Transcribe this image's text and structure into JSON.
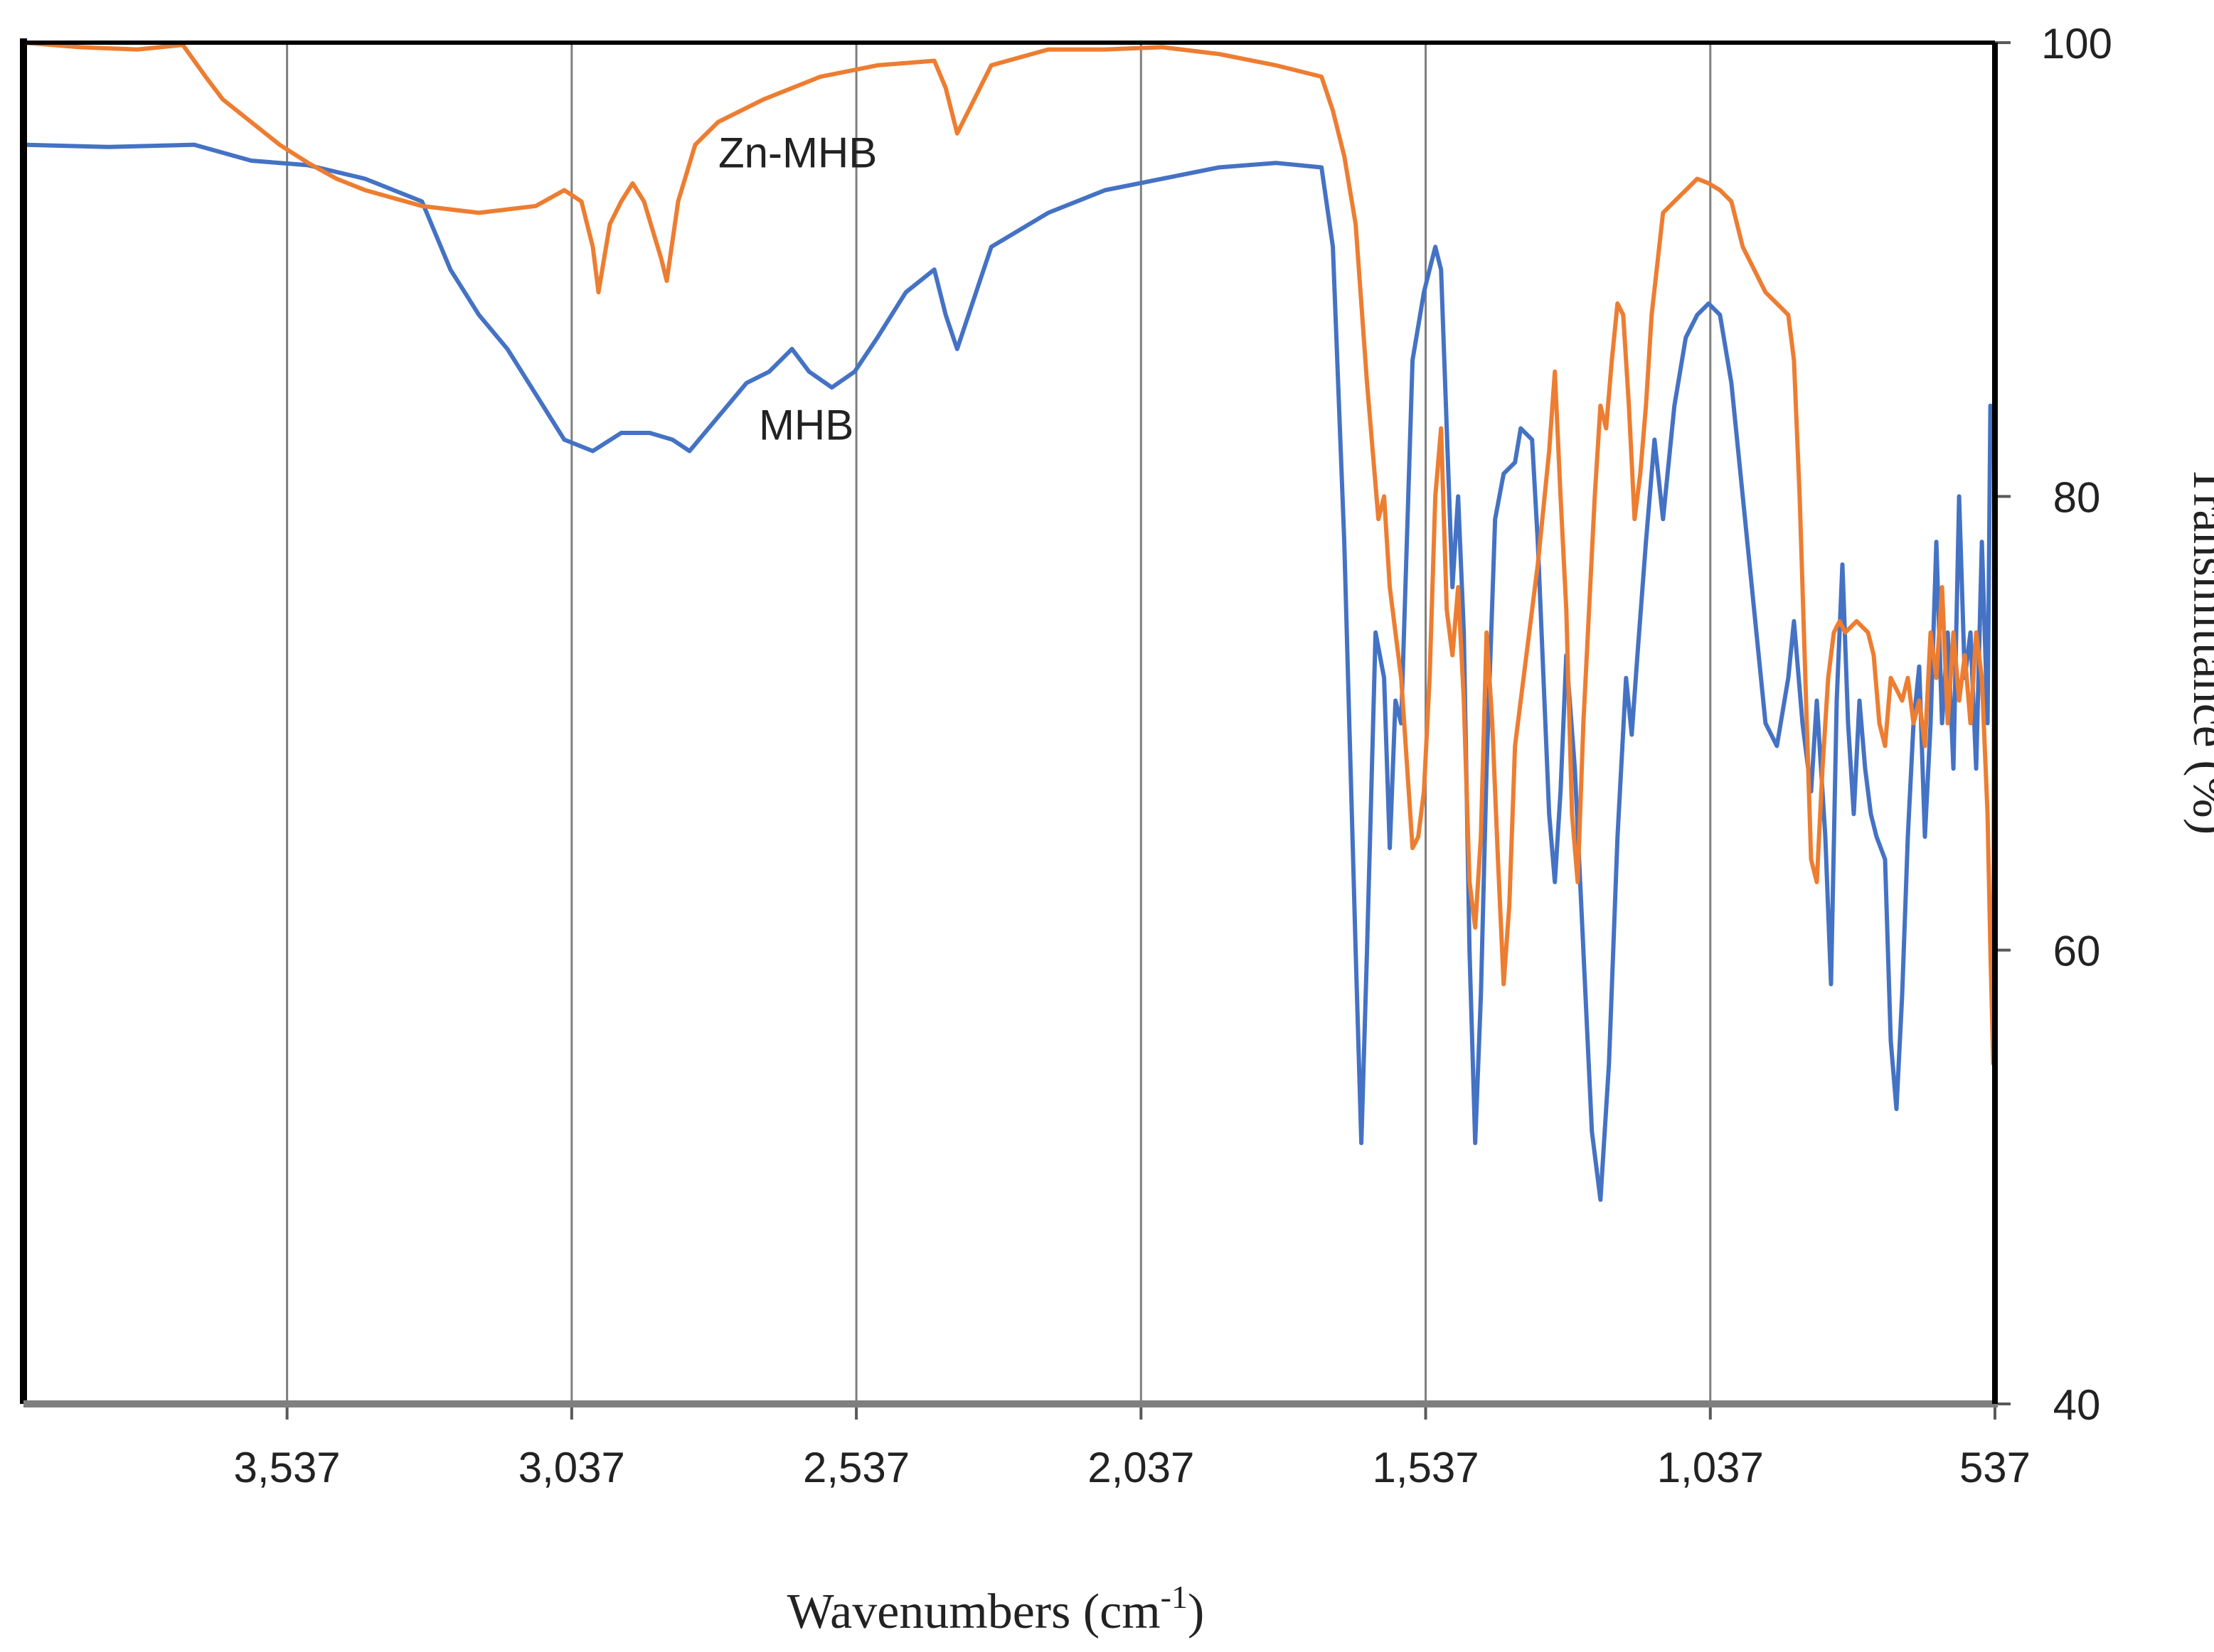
{
  "chart_data": {
    "type": "line",
    "xlabel": "Wavenumbers (cm",
    "xlabel_sup": "-1",
    "xlabel_suffix": ")",
    "ylabel": "Transmittance (%)",
    "x_reversed": true,
    "xlim": [
      537,
      4000
    ],
    "ylim": [
      40,
      100
    ],
    "x_ticks": [
      "3,537",
      "3,037",
      "2,537",
      "2,037",
      "1,537",
      "1,037",
      "537"
    ],
    "x_tick_values": [
      3537,
      3037,
      2537,
      2037,
      1537,
      1037,
      537
    ],
    "y_ticks": [
      "40",
      "60",
      "80",
      "100"
    ],
    "y_tick_values": [
      40,
      60,
      80,
      100
    ],
    "y_axis_side": "right",
    "grid": {
      "vertical": true,
      "horizontal": false
    },
    "series": [
      {
        "name": "MHB",
        "color": "#4472C4",
        "points": [
          [
            4000,
            95.5
          ],
          [
            3850,
            95.4
          ],
          [
            3700,
            95.5
          ],
          [
            3600,
            94.8
          ],
          [
            3500,
            94.6
          ],
          [
            3400,
            94.0
          ],
          [
            3300,
            93.0
          ],
          [
            3250,
            90.0
          ],
          [
            3200,
            88.0
          ],
          [
            3150,
            86.5
          ],
          [
            3100,
            84.5
          ],
          [
            3050,
            82.5
          ],
          [
            3000,
            82.0
          ],
          [
            2950,
            82.8
          ],
          [
            2900,
            82.8
          ],
          [
            2860,
            82.5
          ],
          [
            2830,
            82.0
          ],
          [
            2780,
            83.5
          ],
          [
            2730,
            85.0
          ],
          [
            2690,
            85.5
          ],
          [
            2650,
            86.5
          ],
          [
            2620,
            85.5
          ],
          [
            2580,
            84.8
          ],
          [
            2540,
            85.5
          ],
          [
            2500,
            87.0
          ],
          [
            2450,
            89.0
          ],
          [
            2400,
            90.0
          ],
          [
            2380,
            88.0
          ],
          [
            2360,
            86.5
          ],
          [
            2340,
            88.0
          ],
          [
            2320,
            89.5
          ],
          [
            2300,
            91.0
          ],
          [
            2200,
            92.5
          ],
          [
            2100,
            93.5
          ],
          [
            2000,
            94.0
          ],
          [
            1900,
            94.5
          ],
          [
            1800,
            94.7
          ],
          [
            1720,
            94.5
          ],
          [
            1700,
            91.0
          ],
          [
            1680,
            78.0
          ],
          [
            1660,
            60.0
          ],
          [
            1650,
            51.5
          ],
          [
            1640,
            60.0
          ],
          [
            1625,
            74.0
          ],
          [
            1610,
            72.0
          ],
          [
            1600,
            64.5
          ],
          [
            1590,
            71.0
          ],
          [
            1580,
            70.0
          ],
          [
            1560,
            86.0
          ],
          [
            1540,
            89.0
          ],
          [
            1520,
            91.0
          ],
          [
            1510,
            90.0
          ],
          [
            1500,
            83.0
          ],
          [
            1490,
            76.0
          ],
          [
            1480,
            80.0
          ],
          [
            1470,
            74.0
          ],
          [
            1460,
            60.0
          ],
          [
            1450,
            51.5
          ],
          [
            1440,
            58.0
          ],
          [
            1430,
            68.0
          ],
          [
            1415,
            79.0
          ],
          [
            1400,
            81.0
          ],
          [
            1380,
            81.5
          ],
          [
            1370,
            83.0
          ],
          [
            1350,
            82.5
          ],
          [
            1340,
            78.0
          ],
          [
            1320,
            66.0
          ],
          [
            1310,
            63.0
          ],
          [
            1300,
            67.0
          ],
          [
            1290,
            73.0
          ],
          [
            1275,
            68.0
          ],
          [
            1260,
            60.0
          ],
          [
            1245,
            52.0
          ],
          [
            1230,
            49.0
          ],
          [
            1215,
            55.0
          ],
          [
            1200,
            65.0
          ],
          [
            1185,
            72.0
          ],
          [
            1175,
            69.5
          ],
          [
            1165,
            73.0
          ],
          [
            1150,
            78.0
          ],
          [
            1135,
            82.5
          ],
          [
            1120,
            79.0
          ],
          [
            1100,
            84.0
          ],
          [
            1080,
            87.0
          ],
          [
            1060,
            88.0
          ],
          [
            1040,
            88.5
          ],
          [
            1020,
            88.0
          ],
          [
            1000,
            85.0
          ],
          [
            980,
            80.0
          ],
          [
            960,
            75.0
          ],
          [
            940,
            70.0
          ],
          [
            920,
            69.0
          ],
          [
            900,
            72.0
          ],
          [
            890,
            74.5
          ],
          [
            875,
            70.0
          ],
          [
            860,
            67.0
          ],
          [
            850,
            71.0
          ],
          [
            835,
            65.0
          ],
          [
            825,
            58.5
          ],
          [
            815,
            71.0
          ],
          [
            805,
            77.0
          ],
          [
            795,
            70.0
          ],
          [
            785,
            66.0
          ],
          [
            775,
            71.0
          ],
          [
            765,
            68.0
          ],
          [
            755,
            66.0
          ],
          [
            745,
            65.0
          ],
          [
            730,
            64.0
          ],
          [
            720,
            56.0
          ],
          [
            710,
            53.0
          ],
          [
            700,
            58.0
          ],
          [
            690,
            65.0
          ],
          [
            680,
            70.0
          ],
          [
            670,
            72.5
          ],
          [
            660,
            65.0
          ],
          [
            650,
            70.0
          ],
          [
            640,
            78.0
          ],
          [
            630,
            70.0
          ],
          [
            620,
            74.0
          ],
          [
            610,
            68.0
          ],
          [
            600,
            80.0
          ],
          [
            590,
            72.0
          ],
          [
            580,
            74.0
          ],
          [
            570,
            68.0
          ],
          [
            560,
            78.0
          ],
          [
            550,
            70.0
          ],
          [
            545,
            84.0
          ],
          [
            540,
            82.0
          ],
          [
            537,
            84.0
          ]
        ]
      },
      {
        "name": "Zn-MHB",
        "color": "#ED7D31",
        "points": [
          [
            4000,
            100
          ],
          [
            3900,
            99.8
          ],
          [
            3800,
            99.7
          ],
          [
            3720,
            99.9
          ],
          [
            3680,
            98.5
          ],
          [
            3650,
            97.5
          ],
          [
            3600,
            96.5
          ],
          [
            3550,
            95.5
          ],
          [
            3500,
            94.7
          ],
          [
            3450,
            94.0
          ],
          [
            3400,
            93.5
          ],
          [
            3300,
            92.8
          ],
          [
            3200,
            92.5
          ],
          [
            3100,
            92.8
          ],
          [
            3050,
            93.5
          ],
          [
            3020,
            93.0
          ],
          [
            3000,
            91.0
          ],
          [
            2990,
            89.0
          ],
          [
            2970,
            92.0
          ],
          [
            2950,
            93.0
          ],
          [
            2930,
            93.8
          ],
          [
            2910,
            93.0
          ],
          [
            2880,
            90.5
          ],
          [
            2870,
            89.5
          ],
          [
            2850,
            93.0
          ],
          [
            2820,
            95.5
          ],
          [
            2780,
            96.5
          ],
          [
            2700,
            97.5
          ],
          [
            2600,
            98.5
          ],
          [
            2500,
            99.0
          ],
          [
            2400,
            99.2
          ],
          [
            2380,
            98.0
          ],
          [
            2360,
            96.0
          ],
          [
            2340,
            97.0
          ],
          [
            2300,
            99.0
          ],
          [
            2200,
            99.7
          ],
          [
            2100,
            99.7
          ],
          [
            2000,
            99.8
          ],
          [
            1900,
            99.5
          ],
          [
            1800,
            99.0
          ],
          [
            1720,
            98.5
          ],
          [
            1700,
            97.0
          ],
          [
            1680,
            95.0
          ],
          [
            1660,
            92.0
          ],
          [
            1640,
            85.0
          ],
          [
            1620,
            79.0
          ],
          [
            1610,
            80.0
          ],
          [
            1600,
            76.0
          ],
          [
            1580,
            72.0
          ],
          [
            1560,
            64.5
          ],
          [
            1550,
            65.0
          ],
          [
            1540,
            67.0
          ],
          [
            1530,
            72.0
          ],
          [
            1520,
            80.0
          ],
          [
            1510,
            83.0
          ],
          [
            1500,
            75.0
          ],
          [
            1490,
            73.0
          ],
          [
            1480,
            76.0
          ],
          [
            1470,
            71.0
          ],
          [
            1460,
            63.0
          ],
          [
            1450,
            61.0
          ],
          [
            1440,
            65.0
          ],
          [
            1430,
            74.0
          ],
          [
            1420,
            70.0
          ],
          [
            1410,
            64.0
          ],
          [
            1400,
            58.5
          ],
          [
            1390,
            62.0
          ],
          [
            1380,
            69.0
          ],
          [
            1360,
            73.0
          ],
          [
            1340,
            77.0
          ],
          [
            1320,
            82.0
          ],
          [
            1310,
            85.5
          ],
          [
            1300,
            80.0
          ],
          [
            1290,
            75.0
          ],
          [
            1280,
            66.0
          ],
          [
            1270,
            63.0
          ],
          [
            1260,
            70.0
          ],
          [
            1240,
            80.0
          ],
          [
            1230,
            84.0
          ],
          [
            1220,
            83.0
          ],
          [
            1210,
            86.0
          ],
          [
            1200,
            88.5
          ],
          [
            1190,
            88.0
          ],
          [
            1180,
            84.0
          ],
          [
            1170,
            79.0
          ],
          [
            1160,
            81.0
          ],
          [
            1150,
            84.0
          ],
          [
            1140,
            88.0
          ],
          [
            1120,
            92.5
          ],
          [
            1100,
            93.0
          ],
          [
            1080,
            93.5
          ],
          [
            1060,
            94.0
          ],
          [
            1040,
            93.8
          ],
          [
            1020,
            93.5
          ],
          [
            1000,
            93.0
          ],
          [
            980,
            91.0
          ],
          [
            960,
            90.0
          ],
          [
            940,
            89.0
          ],
          [
            920,
            88.5
          ],
          [
            900,
            88.0
          ],
          [
            890,
            86.0
          ],
          [
            880,
            80.0
          ],
          [
            870,
            72.0
          ],
          [
            860,
            64.0
          ],
          [
            850,
            63.0
          ],
          [
            840,
            68.0
          ],
          [
            830,
            72.0
          ],
          [
            820,
            74.0
          ],
          [
            810,
            74.5
          ],
          [
            800,
            74.0
          ],
          [
            780,
            74.5
          ],
          [
            760,
            74.0
          ],
          [
            750,
            73.0
          ],
          [
            740,
            70.0
          ],
          [
            730,
            69.0
          ],
          [
            720,
            72.0
          ],
          [
            710,
            71.5
          ],
          [
            700,
            71.0
          ],
          [
            690,
            72.0
          ],
          [
            680,
            70.0
          ],
          [
            670,
            71.0
          ],
          [
            660,
            69.0
          ],
          [
            650,
            74.0
          ],
          [
            640,
            72.0
          ],
          [
            630,
            76.0
          ],
          [
            620,
            70.0
          ],
          [
            610,
            74.0
          ],
          [
            600,
            71.0
          ],
          [
            590,
            73.0
          ],
          [
            580,
            70.0
          ],
          [
            570,
            74.0
          ],
          [
            560,
            72.0
          ],
          [
            550,
            66.0
          ],
          [
            545,
            60.0
          ],
          [
            540,
            55.0
          ],
          [
            538,
            82.0
          ],
          [
            537,
            100
          ]
        ]
      }
    ],
    "annotations": [
      {
        "text": "Zn-MHB",
        "x": 2640,
        "y": 94.5,
        "series": "Zn-MHB"
      },
      {
        "text": "MHB",
        "x": 2625,
        "y": 82.5,
        "series": "MHB"
      }
    ]
  }
}
